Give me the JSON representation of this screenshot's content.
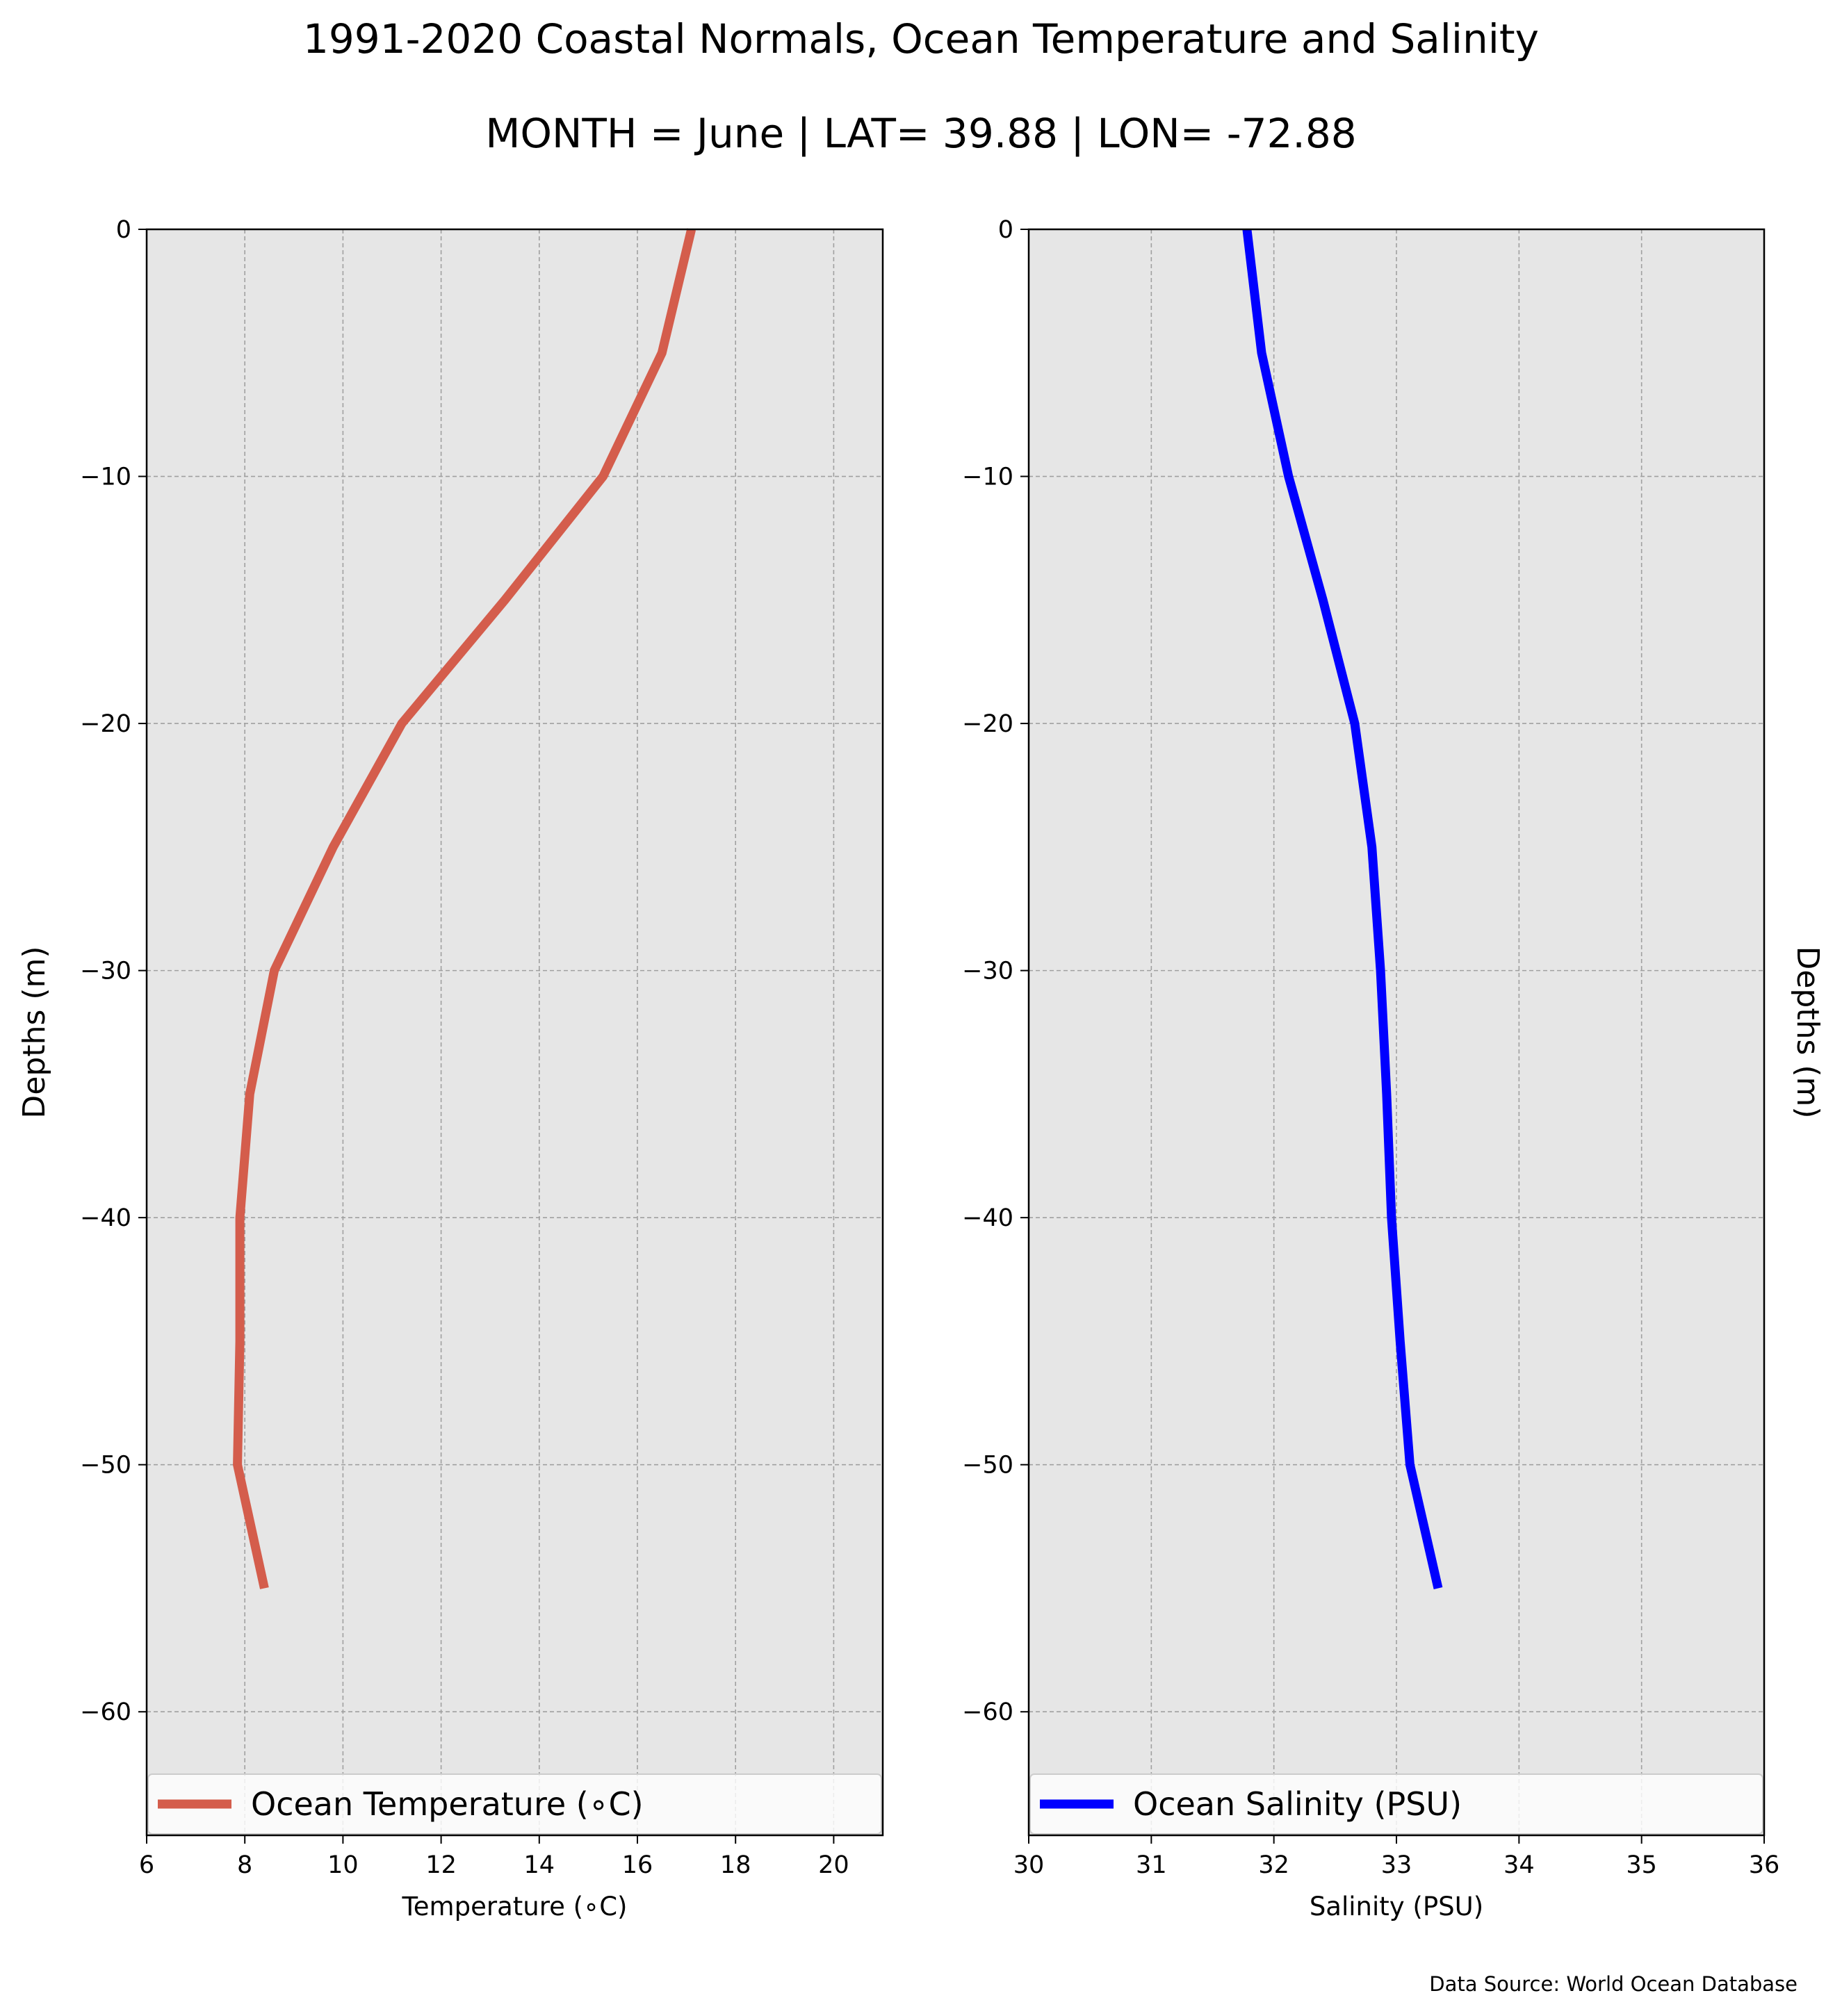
{
  "figure": {
    "title": "1991-2020 Coastal Normals, Ocean Temperature and Salinity",
    "subtitle": "MONTH = June | LAT= 39.88 | LON= -72.88",
    "source_note": "Data Source: World Ocean Database",
    "background_color": "#e6e6e6",
    "grid_color": "#a0a0a0"
  },
  "chart_data": [
    {
      "type": "line",
      "xlabel": "Temperature (∘C)",
      "ylabel": "Depths (m)",
      "xlim": [
        6,
        21
      ],
      "ylim": [
        -65,
        0
      ],
      "xticks": [
        6,
        8,
        10,
        12,
        14,
        16,
        18,
        20
      ],
      "yticks": [
        0,
        -10,
        -20,
        -30,
        -40,
        -50,
        -60
      ],
      "grid": true,
      "legend": "bottom",
      "series": [
        {
          "name": "Ocean Temperature (∘C)",
          "color": "#d45d4c",
          "x": [
            17.1,
            16.5,
            15.3,
            13.3,
            11.2,
            9.8,
            8.6,
            8.1,
            7.9,
            7.9,
            7.85,
            8.4
          ],
          "y": [
            0,
            -5,
            -10,
            -15,
            -20,
            -25,
            -30,
            -35,
            -40,
            -45,
            -50,
            -55
          ]
        }
      ]
    },
    {
      "type": "line",
      "xlabel": "Salinity (PSU)",
      "ylabel": "Depths (m)",
      "xlim": [
        30,
        36
      ],
      "ylim": [
        -65,
        0
      ],
      "xticks": [
        30,
        31,
        32,
        33,
        34,
        35,
        36
      ],
      "yticks": [
        0,
        -10,
        -20,
        -30,
        -40,
        -50,
        -60
      ],
      "grid": true,
      "legend": "bottom",
      "series": [
        {
          "name": "Ocean Salinity (PSU)",
          "color": "#0000ff",
          "x": [
            31.78,
            31.9,
            32.12,
            32.4,
            32.66,
            32.8,
            32.87,
            32.92,
            32.96,
            33.03,
            33.11,
            33.34
          ],
          "y": [
            0,
            -5,
            -10,
            -15,
            -20,
            -25,
            -30,
            -35,
            -40,
            -45,
            -50,
            -55
          ]
        }
      ]
    }
  ]
}
